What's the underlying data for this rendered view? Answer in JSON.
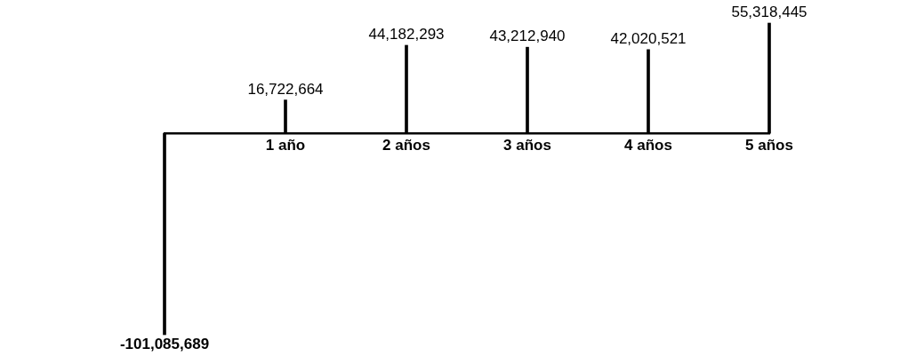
{
  "chart_data": {
    "type": "bar",
    "categories": [
      null,
      "1 año",
      "2 años",
      "3 años",
      "4 años",
      "5 años"
    ],
    "values": [
      -101085689,
      16722664,
      44182293,
      43212940,
      42020521,
      55318445
    ],
    "value_labels": [
      "-101,085,689",
      "16,722,664",
      "44,182,293",
      "43,212,940",
      "42,020,521",
      "55,318,445"
    ],
    "color": "#000000"
  }
}
